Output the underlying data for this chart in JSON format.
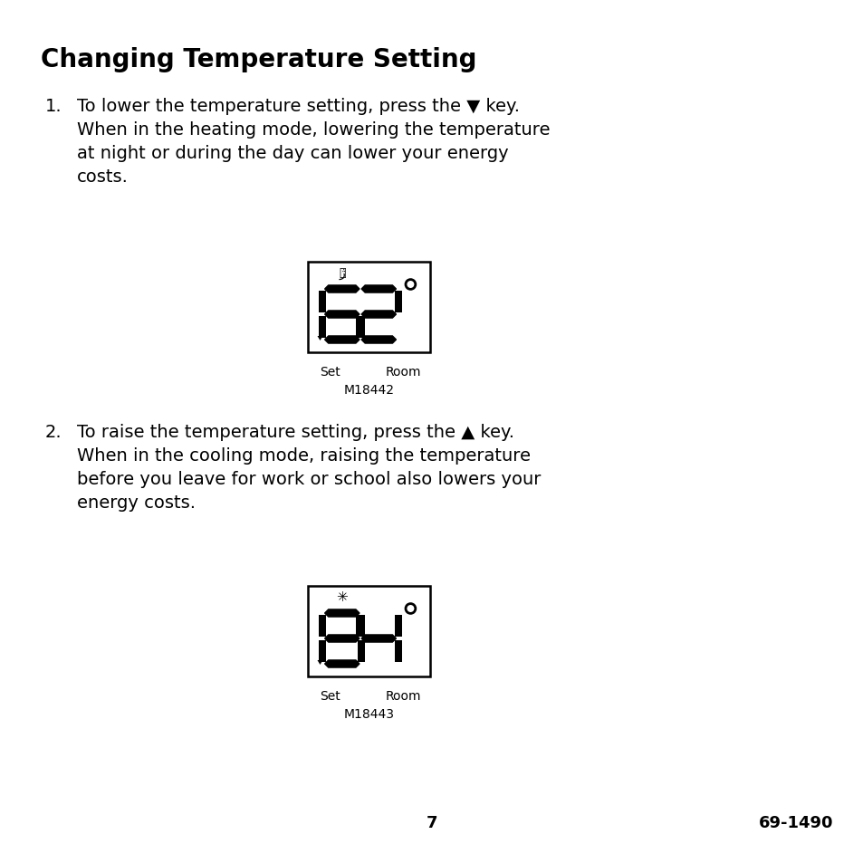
{
  "title": "Changing Temperature Setting",
  "bg_color": "#ffffff",
  "text_color": "#000000",
  "title_fontsize": 20,
  "body_fontsize": 14,
  "item1_lines": [
    "To lower the temperature setting, press the ▼ key.",
    "When in the heating mode, lowering the temperature",
    "at night or during the day can lower your energy",
    "costs."
  ],
  "item2_lines": [
    "To raise the temperature setting, press the ▲ key.",
    "When in the cooling mode, raising the temperature",
    "before you leave for work or school also lowers your",
    "energy costs."
  ],
  "display1_label_left": "Set",
  "display1_label_right": "Room",
  "display1_model": "M18442",
  "display2_label_left": "Set",
  "display2_label_right": "Room",
  "display2_model": "M18443",
  "footer_page": "7",
  "footer_model": "69-1490"
}
